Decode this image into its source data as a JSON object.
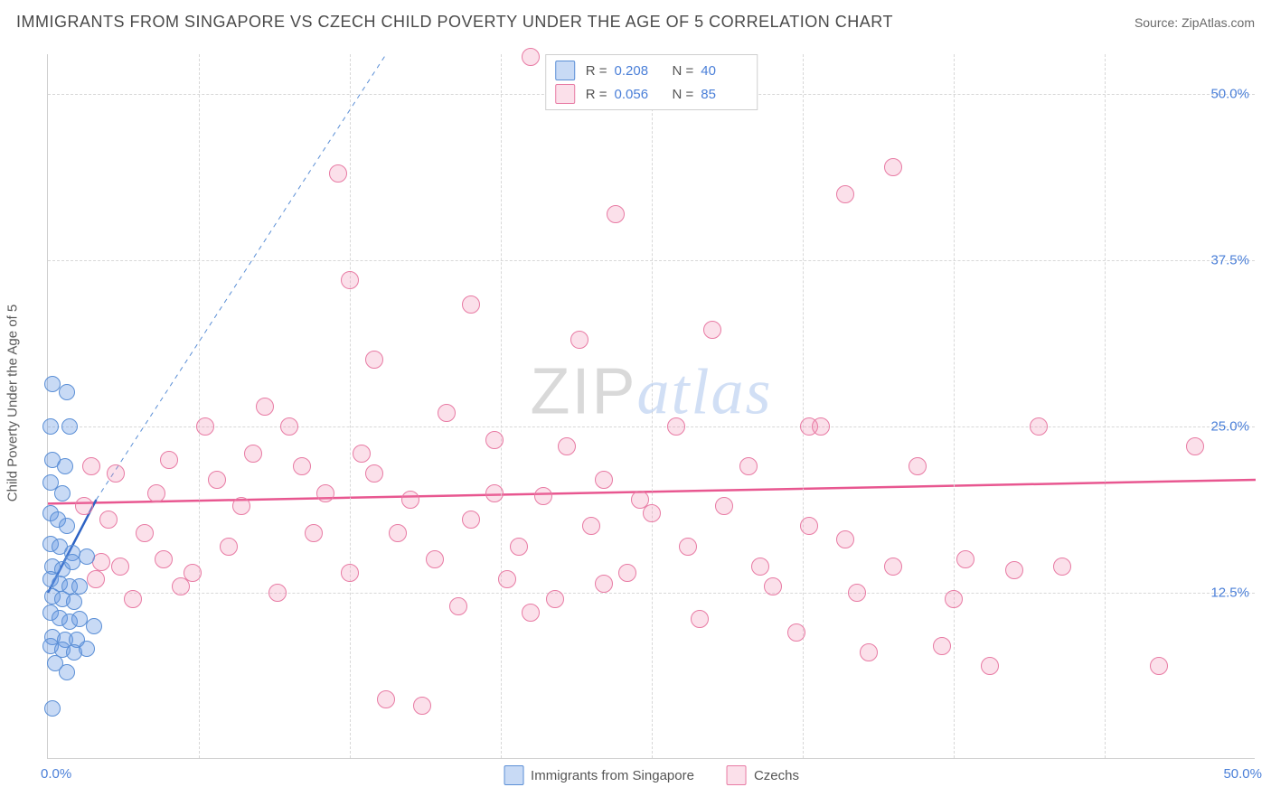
{
  "header": {
    "title": "IMMIGRANTS FROM SINGAPORE VS CZECH CHILD POVERTY UNDER THE AGE OF 5 CORRELATION CHART",
    "source": "Source: ZipAtlas.com"
  },
  "chart": {
    "type": "scatter",
    "ylabel": "Child Poverty Under the Age of 5",
    "xlim": [
      0,
      50
    ],
    "ylim": [
      0,
      53
    ],
    "ytick_values": [
      12.5,
      25.0,
      37.5,
      50.0
    ],
    "ytick_labels": [
      "12.5%",
      "25.0%",
      "37.5%",
      "50.0%"
    ],
    "xtick_values": [
      0,
      6.25,
      12.5,
      18.75,
      25,
      31.25,
      37.5,
      43.75,
      50
    ],
    "xtick_labels_shown": {
      "0": "0.0%",
      "50": "50.0%"
    },
    "background_color": "#ffffff",
    "grid_color": "#d8d8d8",
    "series": {
      "singapore": {
        "label": "Immigrants from Singapore",
        "marker_radius": 9,
        "fill": "rgba(96,150,226,0.35)",
        "stroke": "#5b8fd6",
        "stroke_width": 1.2,
        "R": "0.208",
        "N": "40",
        "trend": {
          "x1": 0,
          "y1": 12.5,
          "x2": 2.0,
          "y2": 19.5,
          "color": "#2d63c4",
          "width": 2.5,
          "dash": "none"
        },
        "extrapolation": {
          "x1": 2.0,
          "y1": 19.5,
          "x2": 14.0,
          "y2": 53.0,
          "color": "#5b8fd6",
          "width": 1,
          "dash": "5,5"
        },
        "points": [
          [
            0.2,
            28.2
          ],
          [
            0.8,
            27.6
          ],
          [
            0.1,
            25.0
          ],
          [
            0.9,
            25.0
          ],
          [
            0.2,
            22.5
          ],
          [
            0.7,
            22.0
          ],
          [
            0.1,
            20.8
          ],
          [
            0.6,
            20.0
          ],
          [
            0.1,
            18.5
          ],
          [
            0.4,
            18.0
          ],
          [
            0.8,
            17.5
          ],
          [
            0.1,
            16.2
          ],
          [
            0.5,
            16.0
          ],
          [
            1.0,
            15.5
          ],
          [
            0.2,
            14.5
          ],
          [
            0.6,
            14.3
          ],
          [
            1.0,
            14.8
          ],
          [
            0.1,
            13.5
          ],
          [
            0.5,
            13.2
          ],
          [
            0.9,
            13.0
          ],
          [
            1.3,
            13.0
          ],
          [
            0.2,
            12.2
          ],
          [
            0.6,
            12.0
          ],
          [
            1.1,
            11.8
          ],
          [
            0.1,
            11.0
          ],
          [
            0.5,
            10.6
          ],
          [
            0.9,
            10.3
          ],
          [
            1.3,
            10.5
          ],
          [
            1.9,
            10.0
          ],
          [
            0.2,
            9.2
          ],
          [
            0.7,
            9.0
          ],
          [
            1.2,
            9.0
          ],
          [
            0.1,
            8.5
          ],
          [
            0.6,
            8.2
          ],
          [
            1.1,
            8.0
          ],
          [
            1.6,
            8.3
          ],
          [
            0.3,
            7.2
          ],
          [
            0.8,
            6.5
          ],
          [
            0.2,
            3.8
          ],
          [
            1.6,
            15.2
          ]
        ]
      },
      "czech": {
        "label": "Czechs",
        "marker_radius": 10,
        "fill": "rgba(238,130,170,0.25)",
        "stroke": "#e87ba4",
        "stroke_width": 1.2,
        "R": "0.056",
        "N": "85",
        "trend": {
          "x1": 0,
          "y1": 19.2,
          "x2": 50,
          "y2": 21.0,
          "color": "#e85790",
          "width": 2.5,
          "dash": "none"
        },
        "points": [
          [
            20.0,
            52.8
          ],
          [
            12.0,
            44.0
          ],
          [
            12.5,
            36.0
          ],
          [
            17.5,
            34.2
          ],
          [
            22.0,
            31.5
          ],
          [
            27.5,
            32.3
          ],
          [
            13.5,
            30.0
          ],
          [
            31.5,
            25.0
          ],
          [
            33.0,
            42.5
          ],
          [
            23.5,
            41.0
          ],
          [
            35.0,
            44.5
          ],
          [
            5.0,
            22.5
          ],
          [
            7.0,
            21.0
          ],
          [
            9.0,
            26.5
          ],
          [
            10.0,
            25.0
          ],
          [
            11.5,
            20.0
          ],
          [
            13.0,
            23.0
          ],
          [
            14.5,
            17.0
          ],
          [
            15.0,
            19.5
          ],
          [
            16.5,
            26.0
          ],
          [
            17.5,
            18.0
          ],
          [
            18.5,
            20.0
          ],
          [
            19.5,
            16.0
          ],
          [
            20.5,
            19.8
          ],
          [
            21.0,
            12.0
          ],
          [
            22.5,
            17.5
          ],
          [
            23.0,
            21.0
          ],
          [
            24.0,
            14.0
          ],
          [
            25.0,
            18.5
          ],
          [
            26.0,
            25.0
          ],
          [
            27.0,
            10.5
          ],
          [
            28.0,
            19.0
          ],
          [
            29.0,
            22.0
          ],
          [
            30.0,
            13.0
          ],
          [
            31.0,
            9.5
          ],
          [
            32.0,
            25.0
          ],
          [
            33.0,
            16.5
          ],
          [
            34.0,
            8.0
          ],
          [
            35.0,
            14.5
          ],
          [
            36.0,
            22.0
          ],
          [
            37.0,
            8.5
          ],
          [
            38.0,
            15.0
          ],
          [
            39.0,
            7.0
          ],
          [
            40.0,
            14.2
          ],
          [
            41.0,
            25.0
          ],
          [
            42.0,
            14.5
          ],
          [
            47.5,
            23.5
          ],
          [
            4.0,
            17.0
          ],
          [
            6.0,
            14.0
          ],
          [
            8.0,
            19.0
          ],
          [
            3.0,
            14.5
          ],
          [
            5.5,
            13.0
          ],
          [
            7.5,
            16.0
          ],
          [
            9.5,
            12.5
          ],
          [
            2.5,
            18.0
          ],
          [
            4.5,
            20.0
          ],
          [
            6.5,
            25.0
          ],
          [
            8.5,
            23.0
          ],
          [
            10.5,
            22.0
          ],
          [
            12.5,
            14.0
          ],
          [
            14.0,
            4.5
          ],
          [
            15.5,
            4.0
          ],
          [
            2.0,
            13.5
          ],
          [
            3.5,
            12.0
          ],
          [
            1.5,
            19.0
          ],
          [
            2.8,
            21.5
          ],
          [
            4.8,
            15.0
          ],
          [
            1.8,
            22.0
          ],
          [
            2.2,
            14.8
          ],
          [
            11.0,
            17.0
          ],
          [
            13.5,
            21.5
          ],
          [
            16.0,
            15.0
          ],
          [
            18.5,
            24.0
          ],
          [
            19.0,
            13.5
          ],
          [
            21.5,
            23.5
          ],
          [
            24.5,
            19.5
          ],
          [
            33.5,
            12.5
          ],
          [
            29.5,
            14.5
          ],
          [
            26.5,
            16.0
          ],
          [
            17.0,
            11.5
          ],
          [
            20.0,
            11.0
          ],
          [
            46.0,
            7.0
          ],
          [
            37.5,
            12.0
          ],
          [
            23.0,
            13.2
          ],
          [
            31.5,
            17.5
          ]
        ]
      }
    },
    "legend_top": {
      "rows": [
        {
          "swatch_fill": "rgba(96,150,226,0.35)",
          "swatch_stroke": "#5b8fd6",
          "R_label": "R =",
          "R_val": "0.208",
          "N_label": "N =",
          "N_val": "40"
        },
        {
          "swatch_fill": "rgba(238,130,170,0.25)",
          "swatch_stroke": "#e87ba4",
          "R_label": "R =",
          "R_val": "0.056",
          "N_label": "N =",
          "N_val": "85"
        }
      ]
    },
    "legend_bottom": {
      "items": [
        {
          "swatch_fill": "rgba(96,150,226,0.35)",
          "swatch_stroke": "#5b8fd6",
          "label": "Immigrants from Singapore"
        },
        {
          "swatch_fill": "rgba(238,130,170,0.25)",
          "swatch_stroke": "#e87ba4",
          "label": "Czechs"
        }
      ]
    },
    "watermark": {
      "part1": "ZIP",
      "part2": "atlas"
    }
  }
}
